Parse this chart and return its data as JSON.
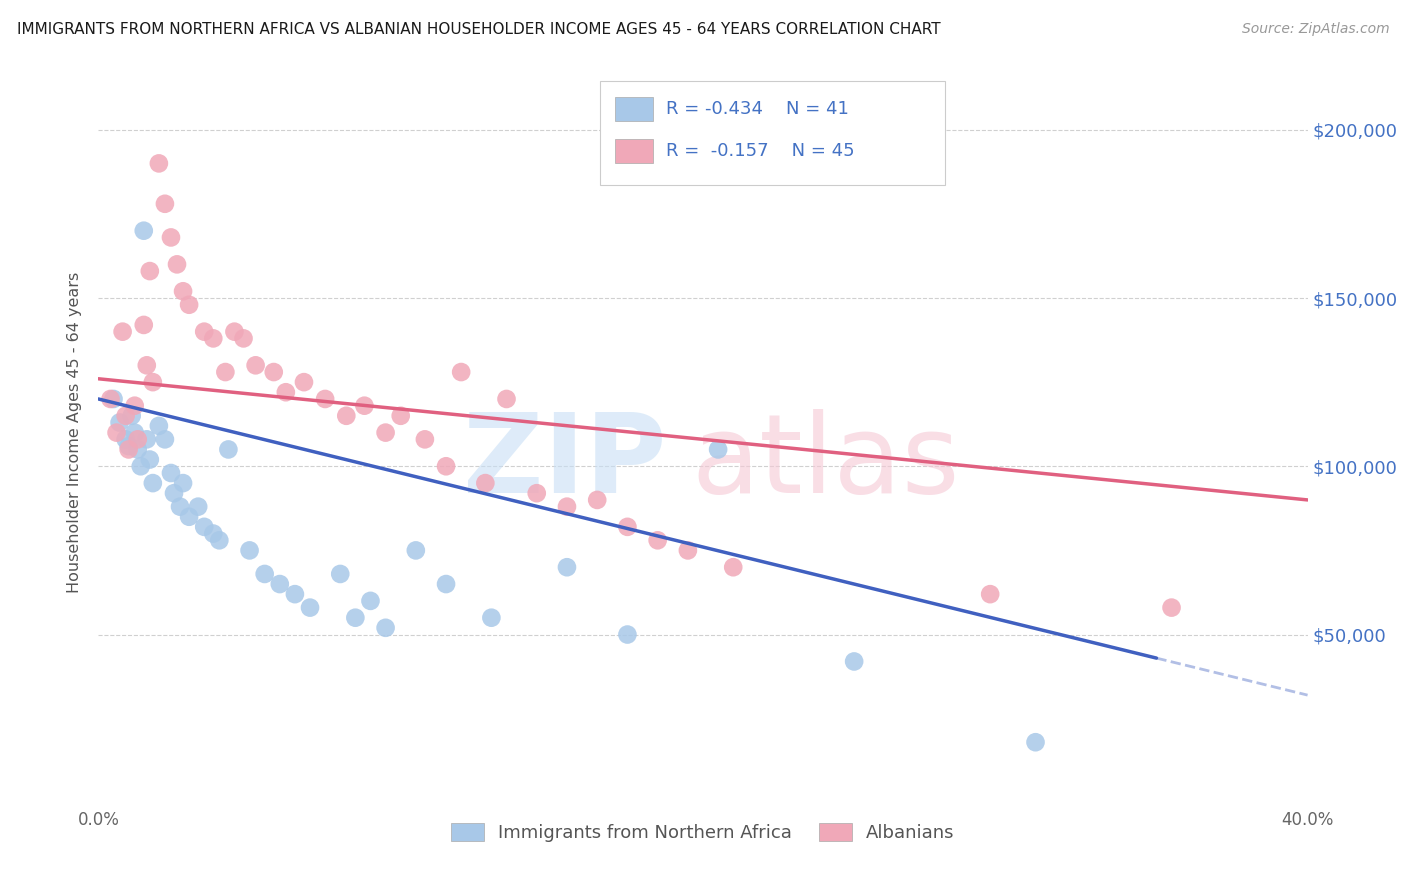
{
  "title": "IMMIGRANTS FROM NORTHERN AFRICA VS ALBANIAN HOUSEHOLDER INCOME AGES 45 - 64 YEARS CORRELATION CHART",
  "source": "Source: ZipAtlas.com",
  "ylabel": "Householder Income Ages 45 - 64 years",
  "xlim": [
    0.0,
    0.4
  ],
  "ylim": [
    0,
    220000
  ],
  "ytick_labels_right": [
    "$200,000",
    "$150,000",
    "$100,000",
    "$50,000"
  ],
  "ytick_vals_right": [
    200000,
    150000,
    100000,
    50000
  ],
  "grid_color": "#d0d0d0",
  "background_color": "#ffffff",
  "blue_color": "#a8c8e8",
  "pink_color": "#f0a8b8",
  "blue_line_color": "#4060c0",
  "pink_line_color": "#e06080",
  "blue_R": -0.434,
  "blue_N": 41,
  "pink_R": -0.157,
  "pink_N": 45,
  "legend_label_blue": "Immigrants from Northern Africa",
  "legend_label_pink": "Albanians",
  "blue_line_x0": 0.0,
  "blue_line_y0": 120000,
  "blue_line_x1": 0.35,
  "blue_line_y1": 43000,
  "pink_line_x0": 0.0,
  "pink_line_y0": 126000,
  "pink_line_x1": 0.4,
  "pink_line_y1": 90000,
  "blue_scatter_x": [
    0.005,
    0.007,
    0.009,
    0.01,
    0.011,
    0.012,
    0.013,
    0.014,
    0.015,
    0.016,
    0.017,
    0.018,
    0.02,
    0.022,
    0.024,
    0.025,
    0.027,
    0.028,
    0.03,
    0.033,
    0.035,
    0.038,
    0.04,
    0.043,
    0.05,
    0.055,
    0.06,
    0.065,
    0.07,
    0.08,
    0.085,
    0.09,
    0.095,
    0.105,
    0.115,
    0.13,
    0.155,
    0.175,
    0.205,
    0.25,
    0.31
  ],
  "blue_scatter_y": [
    120000,
    113000,
    108000,
    106000,
    115000,
    110000,
    105000,
    100000,
    170000,
    108000,
    102000,
    95000,
    112000,
    108000,
    98000,
    92000,
    88000,
    95000,
    85000,
    88000,
    82000,
    80000,
    78000,
    105000,
    75000,
    68000,
    65000,
    62000,
    58000,
    68000,
    55000,
    60000,
    52000,
    75000,
    65000,
    55000,
    70000,
    50000,
    105000,
    42000,
    18000
  ],
  "pink_scatter_x": [
    0.004,
    0.006,
    0.008,
    0.009,
    0.01,
    0.012,
    0.013,
    0.015,
    0.016,
    0.017,
    0.018,
    0.02,
    0.022,
    0.024,
    0.026,
    0.028,
    0.03,
    0.035,
    0.038,
    0.042,
    0.045,
    0.048,
    0.052,
    0.058,
    0.062,
    0.068,
    0.075,
    0.082,
    0.088,
    0.095,
    0.1,
    0.108,
    0.115,
    0.12,
    0.128,
    0.135,
    0.145,
    0.155,
    0.165,
    0.175,
    0.185,
    0.195,
    0.21,
    0.295,
    0.355
  ],
  "pink_scatter_y": [
    120000,
    110000,
    140000,
    115000,
    105000,
    118000,
    108000,
    142000,
    130000,
    158000,
    125000,
    190000,
    178000,
    168000,
    160000,
    152000,
    148000,
    140000,
    138000,
    128000,
    140000,
    138000,
    130000,
    128000,
    122000,
    125000,
    120000,
    115000,
    118000,
    110000,
    115000,
    108000,
    100000,
    128000,
    95000,
    120000,
    92000,
    88000,
    90000,
    82000,
    78000,
    75000,
    70000,
    62000,
    58000
  ]
}
